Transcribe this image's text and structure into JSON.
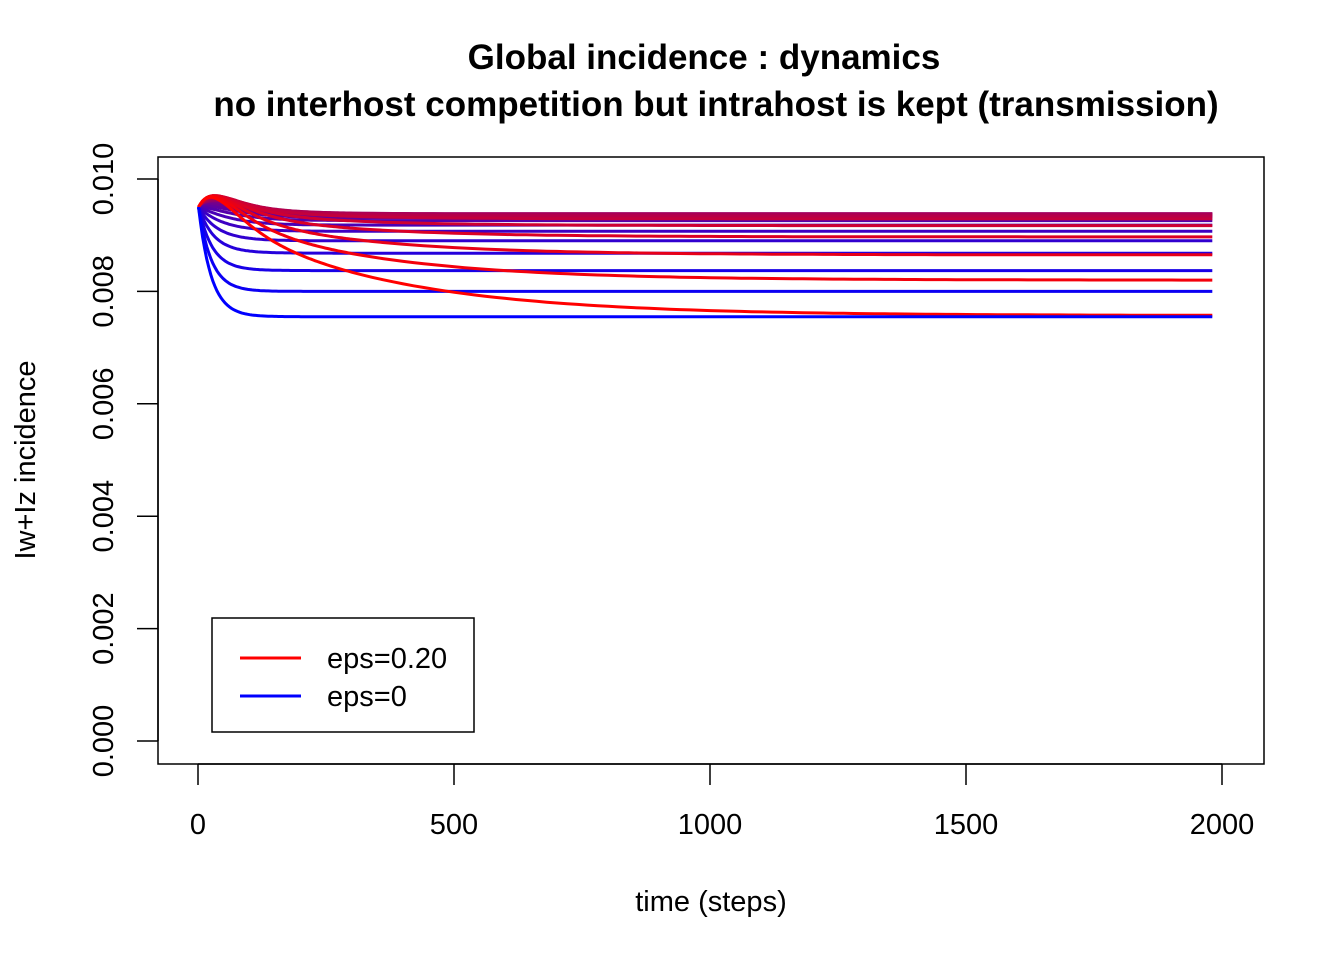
{
  "chart_data": {
    "type": "line",
    "title": "Global incidence : dynamics",
    "subtitle": "no interhost competition but intrahost is kept (transmission)",
    "xlabel": "time (steps)",
    "ylabel": "Iw+Iz incidence",
    "xlim": [
      0,
      2000
    ],
    "ylim": [
      0,
      0.01
    ],
    "xticks": [
      0,
      500,
      1000,
      1500,
      2000
    ],
    "xtick_labels": [
      "0",
      "500",
      "1000",
      "1500",
      "2000"
    ],
    "yticks": [
      0,
      0.002,
      0.004,
      0.006,
      0.008,
      0.01
    ],
    "ytick_labels": [
      "0.000",
      "0.002",
      "0.004",
      "0.006",
      "0.008",
      "0.010"
    ],
    "grid": false,
    "legend_position": "bottom-left",
    "legend": [
      {
        "label": "eps=0.20",
        "color": "#ff0000"
      },
      {
        "label": "eps=0",
        "color": "#0000ff"
      }
    ],
    "color_gradient": [
      "#0000ff",
      "#ff0000"
    ],
    "purple_color": "#800080",
    "x_start": 1,
    "y_start": 0.0095,
    "series_final_values": [
      0.00755,
      0.008,
      0.00837,
      0.00868,
      0.0089,
      0.00907,
      0.00918,
      0.00926,
      0.00931,
      0.00934,
      0.00936,
      0.00937,
      0.00938,
      0.00938,
      0.00937,
      0.00934,
      0.00929,
      0.00917,
      0.00897,
      0.00865,
      0.0082,
      0.00757
    ]
  }
}
